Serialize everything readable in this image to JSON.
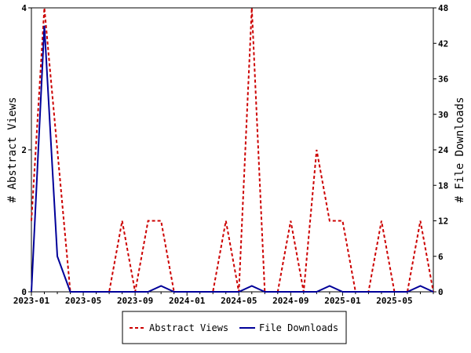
{
  "chart_data": {
    "type": "line",
    "x": [
      "2023-01",
      "2023-02",
      "2023-03",
      "2023-04",
      "2023-05",
      "2023-06",
      "2023-07",
      "2023-08",
      "2023-09",
      "2023-10",
      "2023-11",
      "2023-12",
      "2024-01",
      "2024-02",
      "2024-03",
      "2024-04",
      "2024-05",
      "2024-06",
      "2024-07",
      "2024-08",
      "2024-09",
      "2024-10",
      "2024-11",
      "2024-12",
      "2025-01",
      "2025-02",
      "2025-03",
      "2025-04",
      "2025-05",
      "2025-06",
      "2025-07",
      "2025-08"
    ],
    "x_tick_labels": [
      "2023-01",
      "2023-05",
      "2023-09",
      "2024-01",
      "2024-05",
      "2024-09",
      "2025-01",
      "2025-05"
    ],
    "y_left": {
      "label": "# Abstract Views",
      "ylim": [
        0,
        4
      ],
      "ticks": [
        "0",
        "2",
        "4"
      ]
    },
    "y_right": {
      "label": "# File Downloads",
      "ylim": [
        0,
        48
      ],
      "ticks": [
        "0",
        "6",
        "12",
        "18",
        "24",
        "30",
        "36",
        "42",
        "48"
      ]
    },
    "series": [
      {
        "name": "Abstract Views",
        "axis": "left",
        "color": "#cc0000",
        "style": "dashed",
        "values": [
          1,
          4,
          2,
          0,
          0,
          0,
          0,
          1,
          0,
          1,
          1,
          0,
          0,
          0,
          0,
          1,
          0,
          4,
          0,
          0,
          1,
          0,
          2,
          1,
          1,
          0,
          0,
          1,
          0,
          0,
          1,
          0
        ]
      },
      {
        "name": "File Downloads",
        "axis": "right",
        "color": "#000099",
        "style": "solid",
        "values": [
          0,
          45,
          6,
          0,
          0,
          0,
          0,
          0,
          0,
          0,
          1,
          0,
          0,
          0,
          0,
          0,
          0,
          1,
          0,
          0,
          0,
          0,
          0,
          1,
          0,
          0,
          0,
          0,
          0,
          0,
          1,
          0
        ]
      }
    ],
    "legend": {
      "placement": "bottom-center"
    },
    "grid": false
  }
}
